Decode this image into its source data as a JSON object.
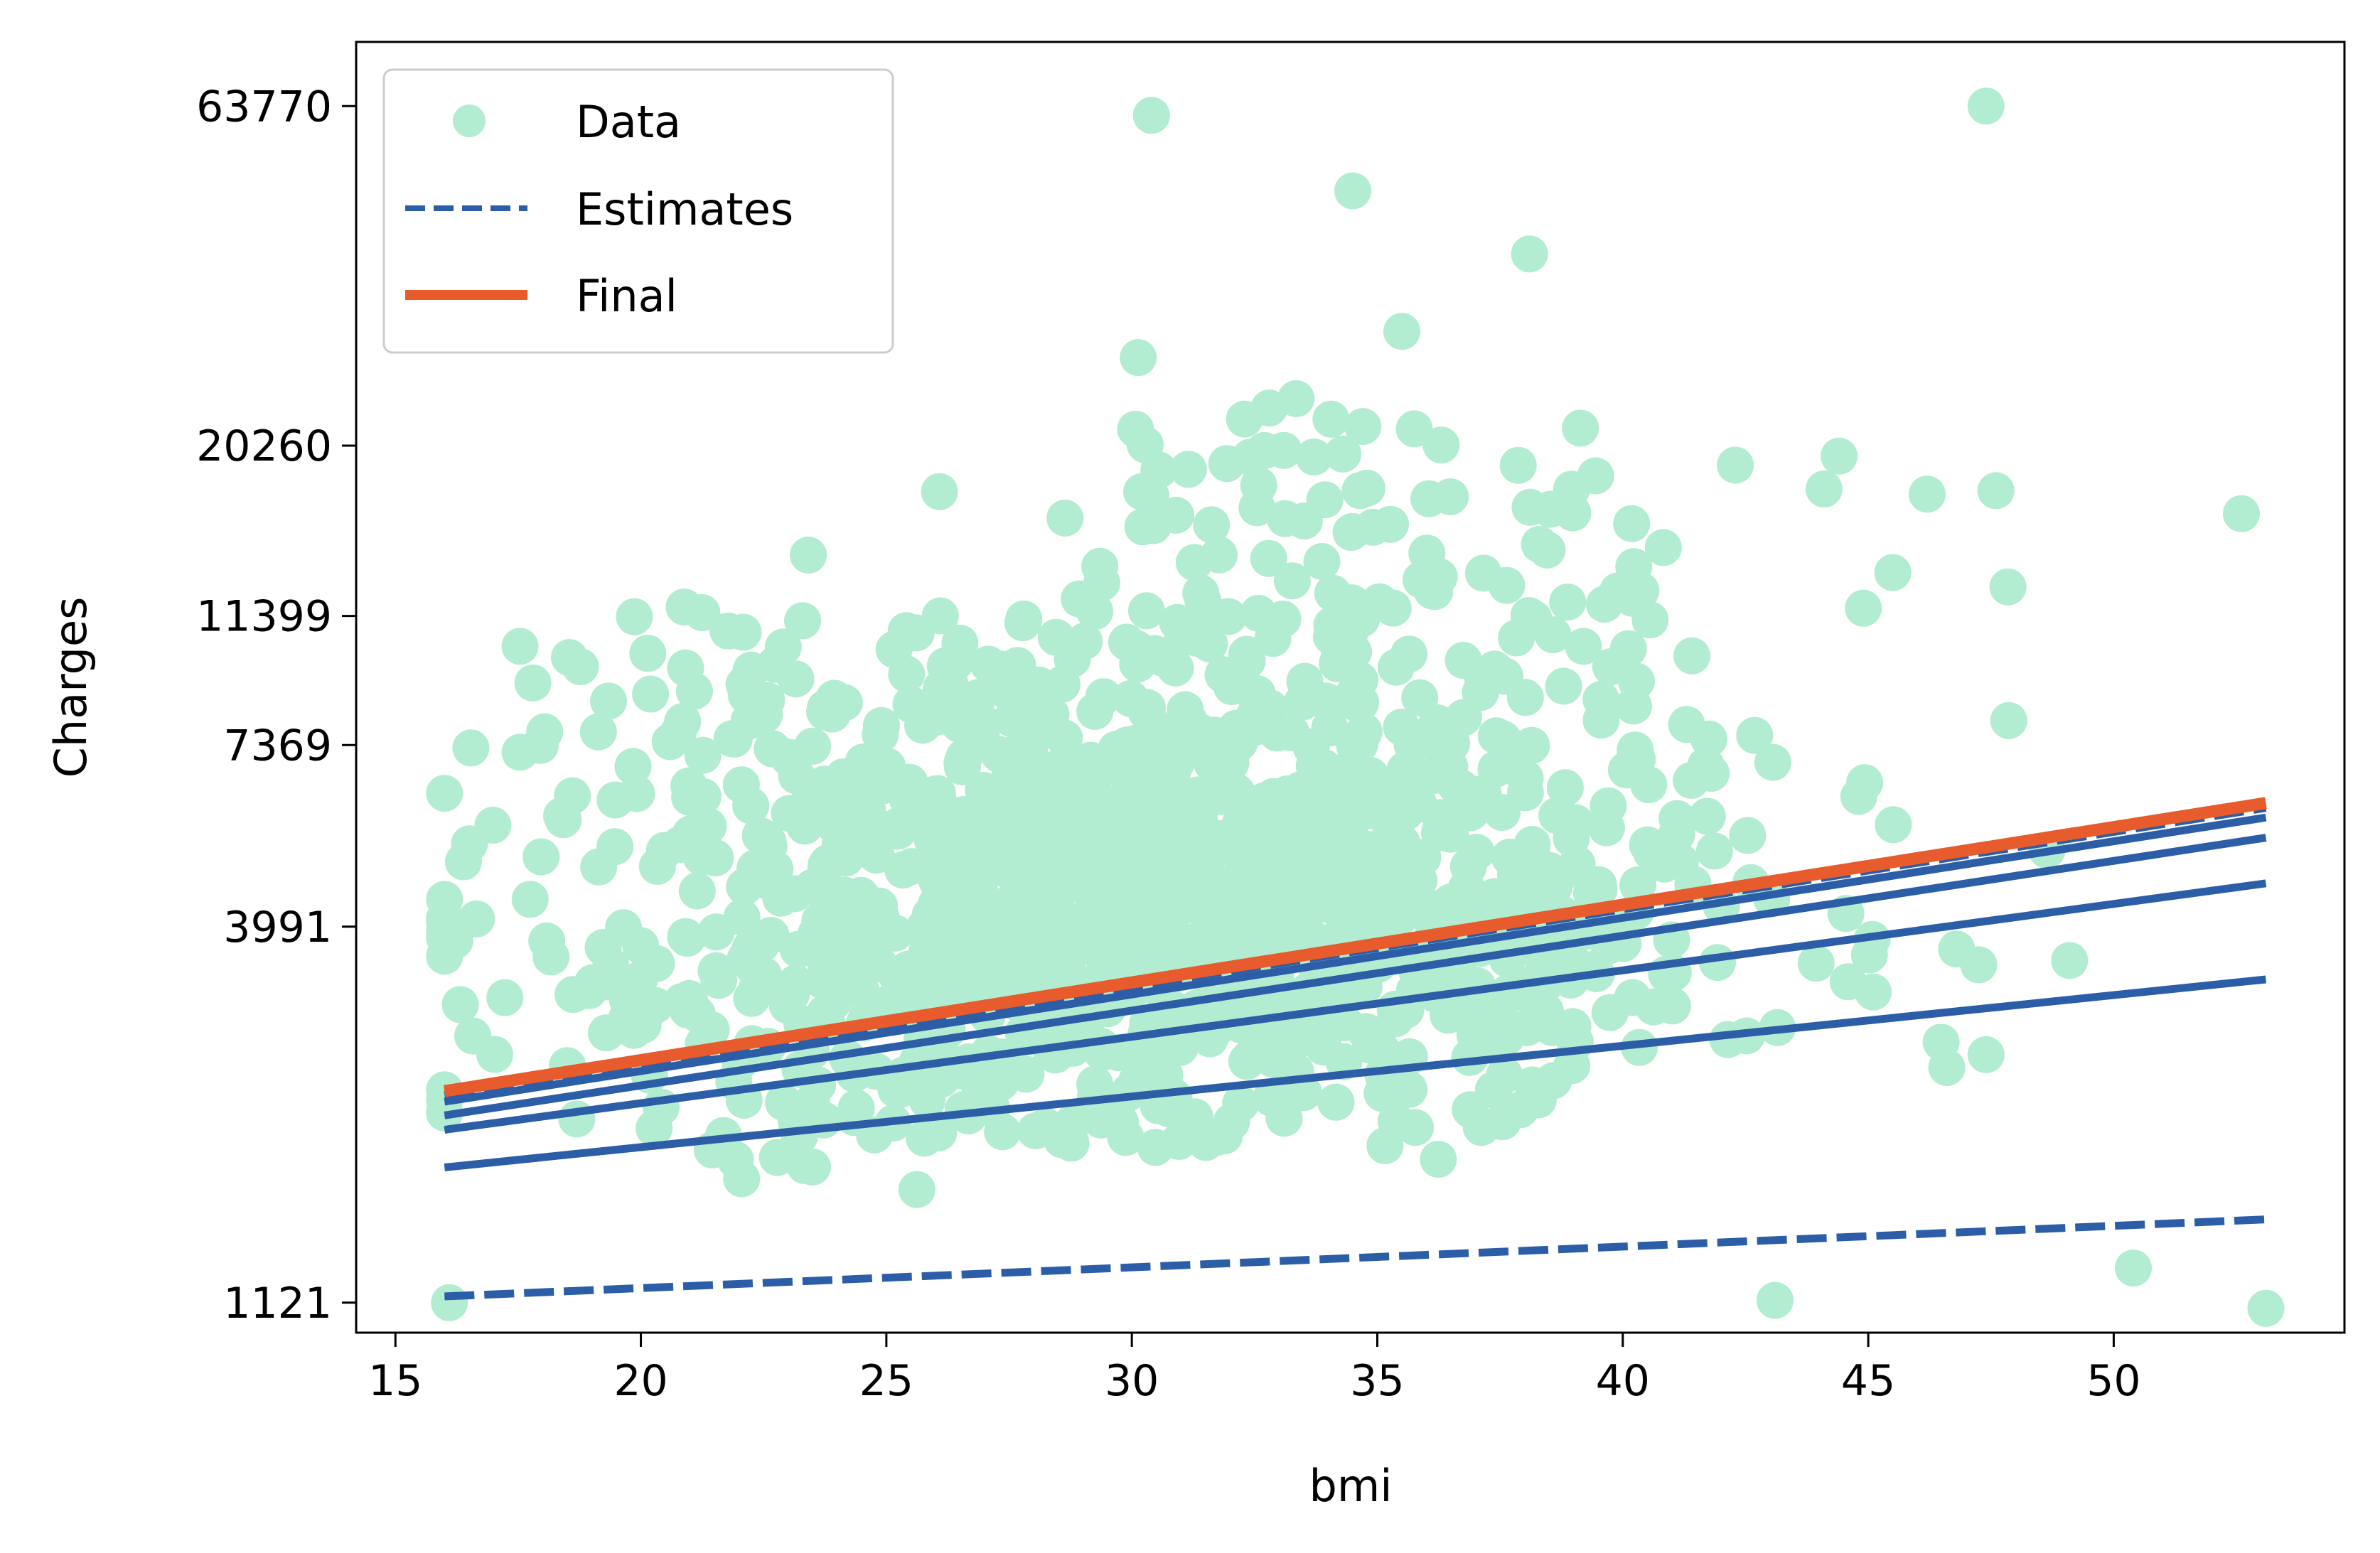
{
  "chart_data": {
    "type": "scatter",
    "title": "",
    "xlabel": "bmi",
    "ylabel": "Charges",
    "xlim": [
      14.2,
      54.7
    ],
    "xticks": [
      15,
      20,
      25,
      30,
      35,
      40,
      45,
      50
    ],
    "ylim_log": [
      1013,
      79200
    ],
    "yscale": "log",
    "yticks": [
      1121,
      3991,
      7369,
      11399,
      20260,
      63770
    ],
    "grid": false,
    "legend": {
      "placement": "top-left",
      "entries": [
        {
          "label": "Data",
          "kind": "marker",
          "color": "#b2ecd1"
        },
        {
          "label": "Estimates",
          "kind": "dashed-line",
          "color": "#2b5ea7"
        },
        {
          "label": "Final",
          "kind": "solid-line",
          "color": "#e85b2c"
        }
      ]
    },
    "colors": {
      "data": "#b2ecd1",
      "estimates": "#2b5ea7",
      "final": "#e85b2c"
    },
    "estimate_lines": [
      {
        "x": [
          16.0,
          53.1
        ],
        "y": [
          1145,
          1485
        ],
        "dashed": true
      },
      {
        "x": [
          16.0,
          53.1
        ],
        "y": [
          1770,
          3340
        ],
        "dashed": false
      },
      {
        "x": [
          16.0,
          53.1
        ],
        "y": [
          2010,
          4620
        ],
        "dashed": false
      },
      {
        "x": [
          16.0,
          53.1
        ],
        "y": [
          2110,
          5390
        ],
        "dashed": false
      },
      {
        "x": [
          16.0,
          53.1
        ],
        "y": [
          2210,
          5770
        ],
        "dashed": false
      },
      {
        "x": [
          16.0,
          53.1
        ],
        "y": [
          2260,
          5960
        ],
        "dashed": true
      }
    ],
    "final_line": {
      "x": [
        16.0,
        53.1
      ],
      "y": [
        2290,
        6060
      ]
    },
    "highlight_points": [
      {
        "x": 17.8,
        "y": 9090
      },
      {
        "x": 22.9,
        "y": 10260
      },
      {
        "x": 26.1,
        "y": 11400
      },
      {
        "x": 27.8,
        "y": 11280
      },
      {
        "x": 30.4,
        "y": 61800
      },
      {
        "x": 34.5,
        "y": 47900
      },
      {
        "x": 38.1,
        "y": 38700
      },
      {
        "x": 47.4,
        "y": 63770
      },
      {
        "x": 52.6,
        "y": 16100
      },
      {
        "x": 35.5,
        "y": 29800
      },
      {
        "x": 32.8,
        "y": 23000
      },
      {
        "x": 36.3,
        "y": 20300
      },
      {
        "x": 46.2,
        "y": 17200
      },
      {
        "x": 47.6,
        "y": 17400
      },
      {
        "x": 44.1,
        "y": 17500
      },
      {
        "x": 39.9,
        "y": 12400
      },
      {
        "x": 40.2,
        "y": 12100
      },
      {
        "x": 45.5,
        "y": 13200
      },
      {
        "x": 44.9,
        "y": 11700
      },
      {
        "x": 41.3,
        "y": 7900
      },
      {
        "x": 41.8,
        "y": 6700
      },
      {
        "x": 16.1,
        "y": 1121
      },
      {
        "x": 53.1,
        "y": 1100
      },
      {
        "x": 50.4,
        "y": 1260
      },
      {
        "x": 43.1,
        "y": 1130
      },
      {
        "x": 49.1,
        "y": 3560
      },
      {
        "x": 46.8,
        "y": 3700
      },
      {
        "x": 47.4,
        "y": 2590
      },
      {
        "x": 46.6,
        "y": 2480
      },
      {
        "x": 45.1,
        "y": 3200
      },
      {
        "x": 35.5,
        "y": 5300
      },
      {
        "x": 34.3,
        "y": 6300
      },
      {
        "x": 33.4,
        "y": 6200
      },
      {
        "x": 37.1,
        "y": 8800
      },
      {
        "x": 37.6,
        "y": 9300
      },
      {
        "x": 31.4,
        "y": 7700
      },
      {
        "x": 30.1,
        "y": 10200
      },
      {
        "x": 30.3,
        "y": 11600
      }
    ],
    "scatter_note": "dense cloud of roughly 1300 points between bmi 16-53 and charges 1121-63770"
  }
}
